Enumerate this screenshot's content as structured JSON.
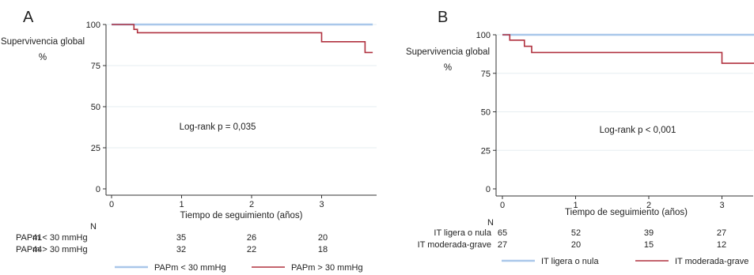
{
  "chart_data": [
    {
      "type": "line",
      "panel_label": "A",
      "ylabel": "Supervivencia global",
      "ylabel_unit": "%",
      "xlabel": "Tiempo de seguimiento (años)",
      "annotation": "Log-rank p = 0,035",
      "xlim": [
        0,
        3.73
      ],
      "ylim": [
        0,
        100
      ],
      "xticks": [
        0,
        1,
        2,
        3
      ],
      "yticks": [
        0,
        25,
        50,
        75,
        100
      ],
      "series": [
        {
          "name": "PAPm < 30 mmHg",
          "color": "#a9c7ea",
          "x": [
            0,
            3.73
          ],
          "y": [
            100,
            100
          ]
        },
        {
          "name": "PAPm > 30 mmHg",
          "color": "#b0313f",
          "x": [
            0,
            0.32,
            0.32,
            0.37,
            0.37,
            3.0,
            3.0,
            3.62,
            3.62,
            3.73
          ],
          "y": [
            100,
            100,
            97,
            97,
            95,
            95,
            89.5,
            89.5,
            83,
            83
          ]
        }
      ],
      "risk_table": {
        "header": "N",
        "rows": [
          {
            "label": "PAPm < 30 mmHg",
            "values": [
              "41",
              "35",
              "26",
              "20"
            ]
          },
          {
            "label": "PAPm > 30 mmHg",
            "values": [
              "44",
              "32",
              "22",
              "18"
            ]
          }
        ]
      }
    },
    {
      "type": "line",
      "panel_label": "B",
      "ylabel": "Supervivencia global",
      "ylabel_unit": "%",
      "xlabel": "Tiempo de seguimiento (años)",
      "annotation": "Log-rank p < 0,001",
      "xlim": [
        0,
        3.45
      ],
      "ylim": [
        0,
        100
      ],
      "xticks": [
        0,
        1,
        2,
        3
      ],
      "yticks": [
        0,
        25,
        50,
        75,
        100
      ],
      "series": [
        {
          "name": "IT ligera o nula",
          "color": "#a9c7ea",
          "x": [
            0,
            3.45
          ],
          "y": [
            100,
            100
          ]
        },
        {
          "name": "IT moderada-grave",
          "color": "#b0313f",
          "x": [
            0,
            0.1,
            0.1,
            0.3,
            0.3,
            0.4,
            0.4,
            3.0,
            3.0,
            3.45
          ],
          "y": [
            100,
            100,
            96.5,
            96.5,
            92.5,
            92.5,
            88.5,
            88.5,
            81.5,
            81.5
          ]
        }
      ],
      "risk_table": {
        "header": "N",
        "rows": [
          {
            "label": "IT ligera o nula",
            "values": [
              "65",
              "52",
              "39",
              "27"
            ]
          },
          {
            "label": "IT moderada-grave",
            "values": [
              "27",
              "20",
              "15",
              "12"
            ]
          }
        ]
      }
    }
  ]
}
